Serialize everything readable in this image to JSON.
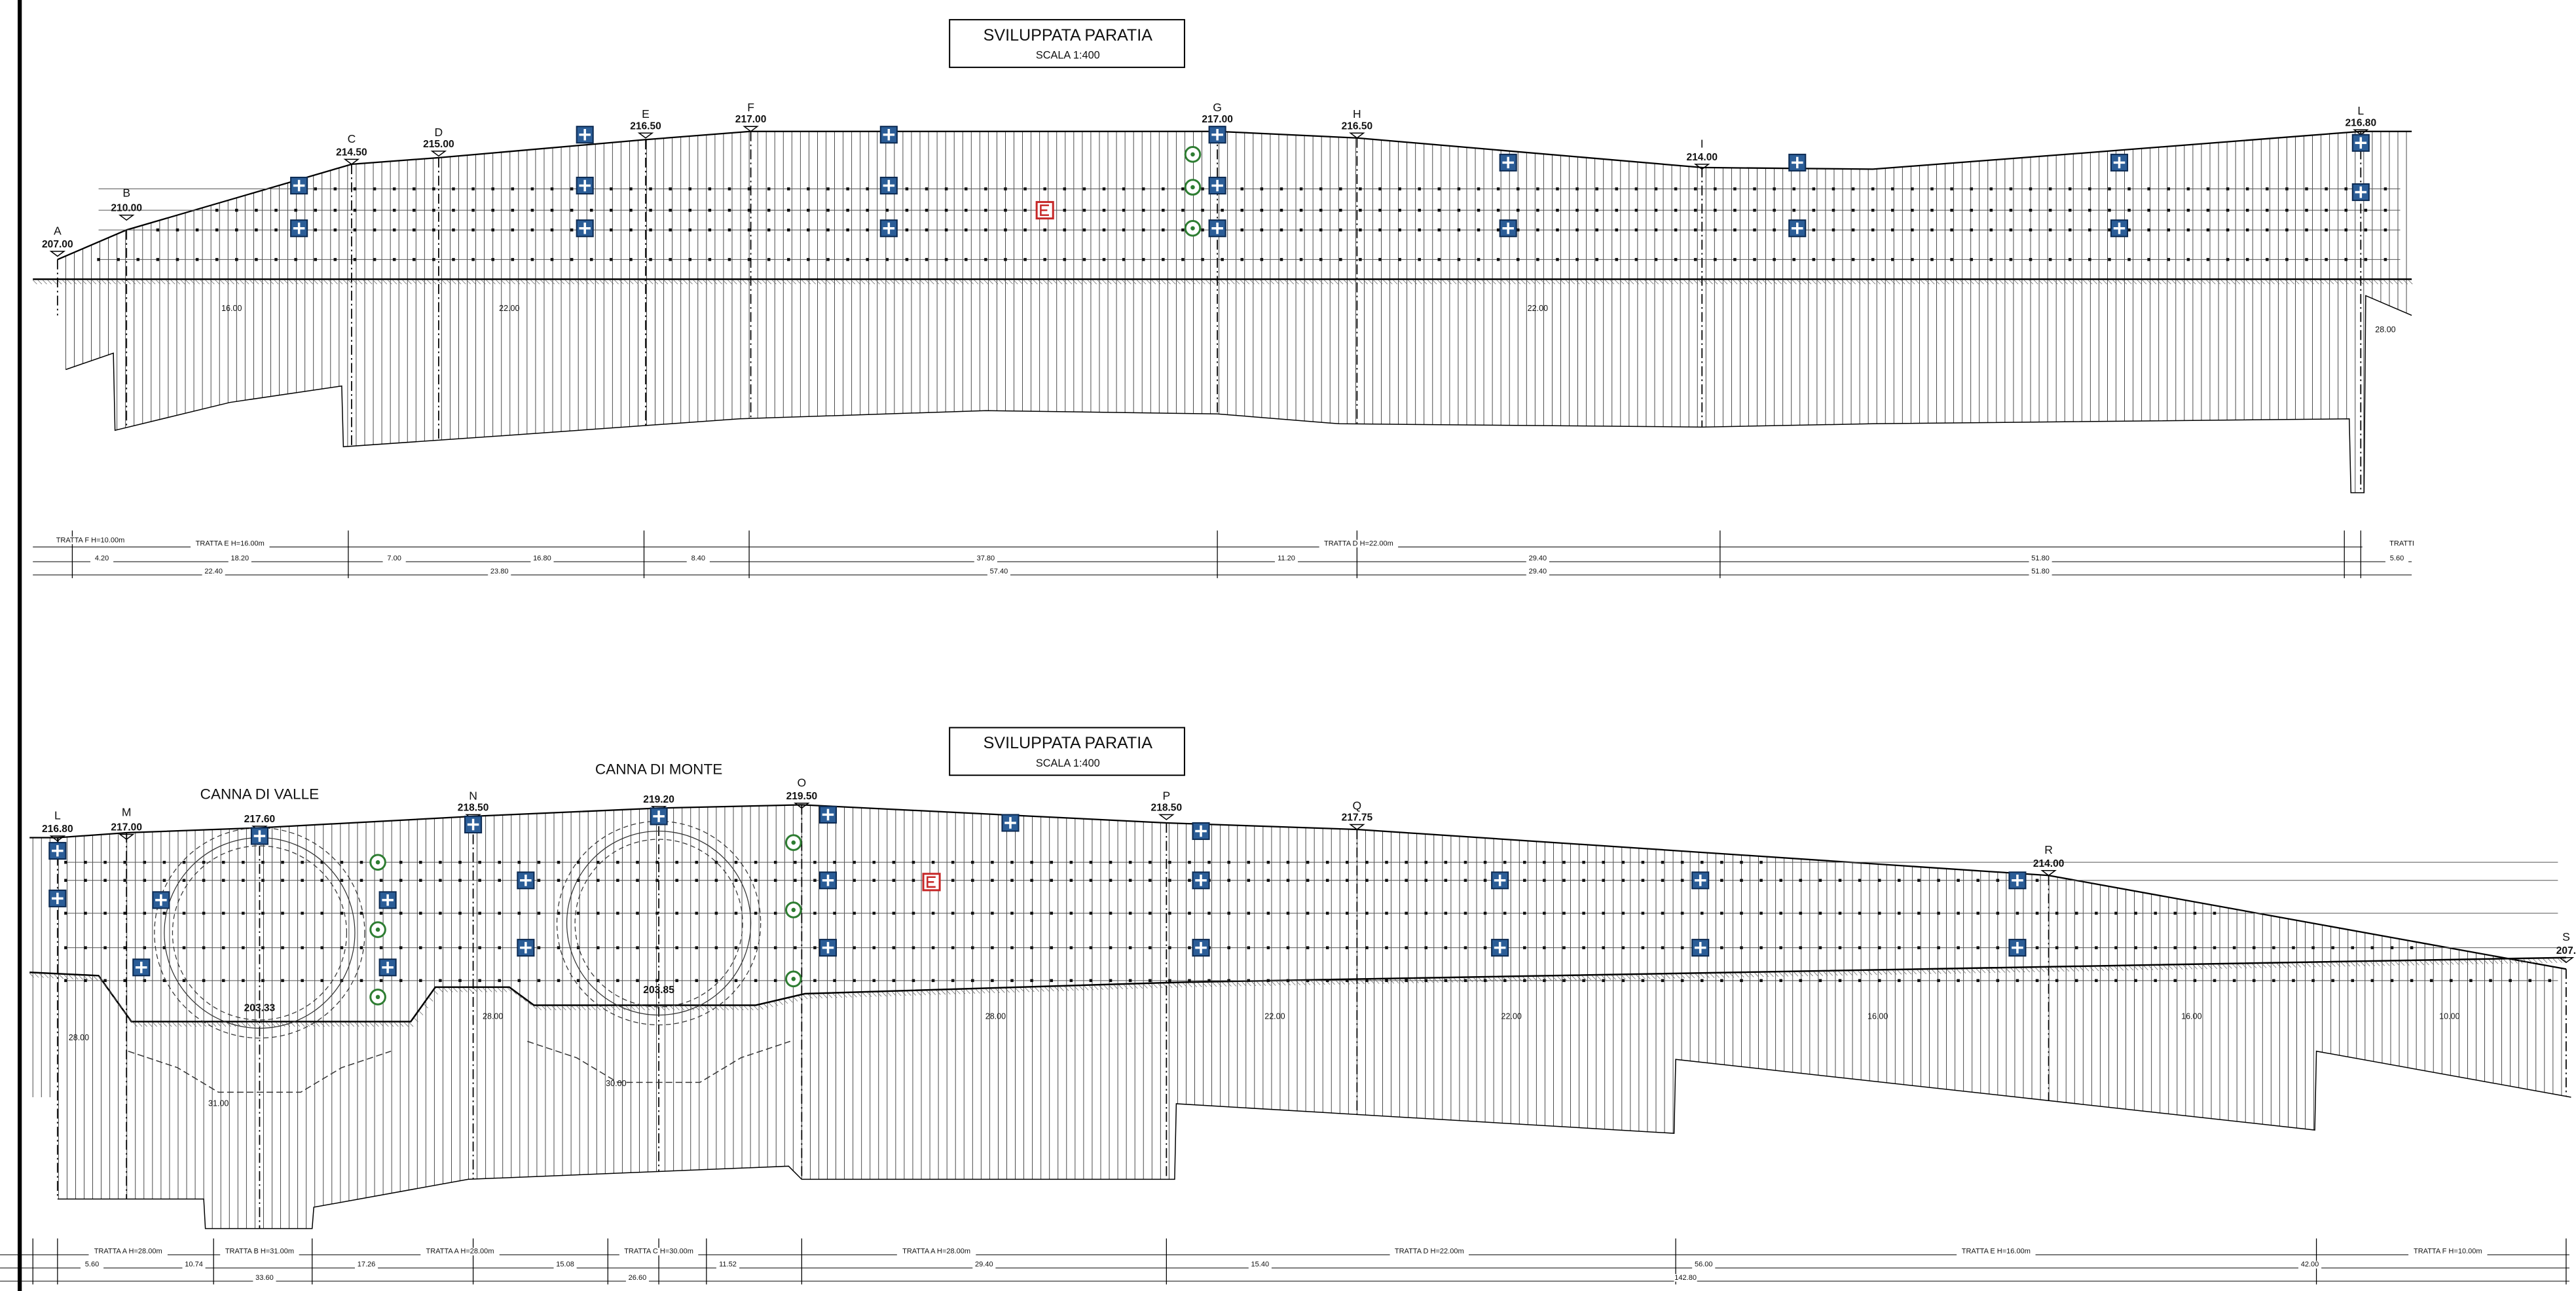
{
  "panels": [
    {
      "title": "SVILUPPATA  PARATIA",
      "scale": "SCALA 1:400",
      "sections": [
        {
          "letter": "A",
          "elevation": "207.00"
        },
        {
          "letter": "B",
          "elevation": "210.00"
        },
        {
          "letter": "C",
          "elevation": "214.50"
        },
        {
          "letter": "D",
          "elevation": "215.00"
        },
        {
          "letter": "E",
          "elevation": "216.50"
        },
        {
          "letter": "F",
          "elevation": "217.00"
        },
        {
          "letter": "G",
          "elevation": "217.00"
        },
        {
          "letter": "H",
          "elevation": "216.50"
        },
        {
          "letter": "I",
          "elevation": "214.00"
        },
        {
          "letter": "L",
          "elevation": "216.80"
        }
      ],
      "depths": [
        "16.00",
        "22.00",
        "22.00",
        "28.00"
      ],
      "dimension_rows": [
        [
          "TRATTA F H=10.00m",
          "TRATTA E H=16.00m",
          "TRATTA D H=22.00m",
          "TRATTI"
        ],
        [
          "4.20",
          "18.20",
          "7.00",
          "16.80",
          "8.40",
          "37.80",
          "11.20",
          "29.40",
          "51.80",
          "5.60"
        ],
        [
          "22.40",
          "23.80",
          "57.40",
          "29.40",
          "51.80"
        ]
      ]
    },
    {
      "title": "SVILUPPATA  PARATIA",
      "scale": "SCALA 1:400",
      "labels": [
        "CANNA DI VALLE",
        "CANNA DI MONTE"
      ],
      "tunnel_elevations": [
        "203.33",
        "203.85"
      ],
      "sections": [
        {
          "letter": "L",
          "elevation": "216.80"
        },
        {
          "letter": "M",
          "elevation": "217.00"
        },
        {
          "elevation": "217.60"
        },
        {
          "letter": "N",
          "elevation": "218.50"
        },
        {
          "elevation": "219.20"
        },
        {
          "letter": "O",
          "elevation": "219.50"
        },
        {
          "letter": "P",
          "elevation": "218.50"
        },
        {
          "letter": "Q",
          "elevation": "217.75"
        },
        {
          "letter": "R",
          "elevation": "214.00"
        },
        {
          "letter": "S",
          "elevation": "207."
        }
      ],
      "depths": [
        "28.00",
        "28.00",
        "28.00",
        "22.00",
        "22.00",
        "16.00",
        "16.00",
        "10.00",
        "31.00",
        "30.00"
      ],
      "dimension_rows": [
        [
          "TRATTA A H=28.00m",
          "TRATTA B H=31.00m",
          "TRATTA A H=28.00m",
          "TRATTA C H=30.00m",
          "TRATTA A H=28.00m",
          "TRATTA D H=22.00m",
          "TRATTA E H=16.00m",
          "TRATTA F H=10.00m"
        ],
        [
          "5.60",
          "10.74",
          "17.26",
          "15.08",
          "11.52",
          "29.40",
          "15.40",
          "56.00",
          "42.00"
        ],
        [
          "33.60",
          "26.60",
          "142.80"
        ]
      ]
    }
  ]
}
